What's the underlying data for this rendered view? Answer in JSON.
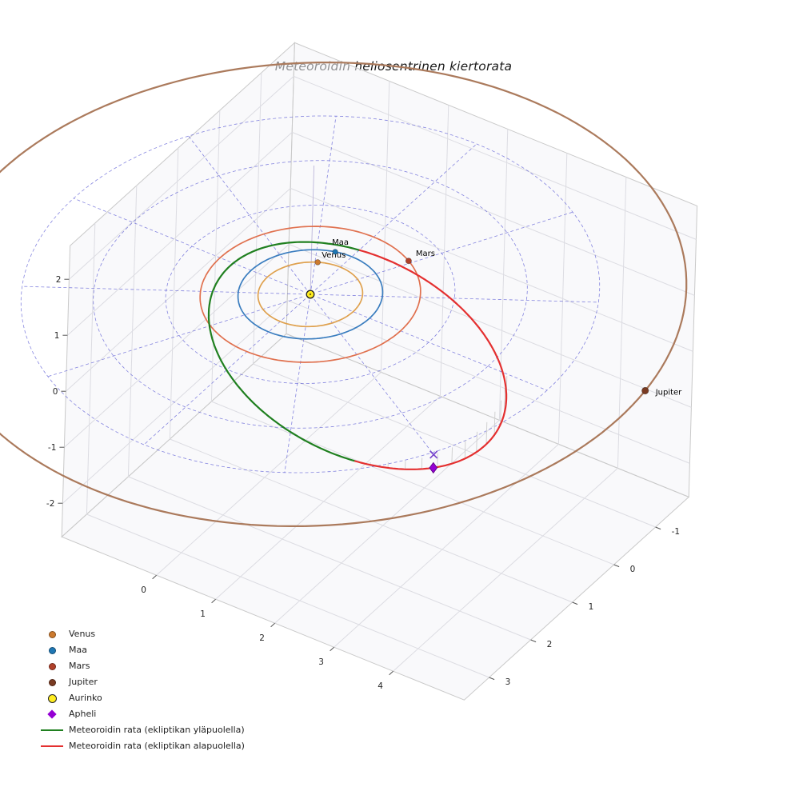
{
  "title": "Meteoroidin heliosentrinen kiertorata",
  "legend": {
    "items": [
      {
        "label": "Venus",
        "swatch": "dot",
        "color": "#cc7a2e"
      },
      {
        "label": "Maa",
        "swatch": "dot",
        "color": "#1f77b4"
      },
      {
        "label": "Mars",
        "swatch": "dot",
        "color": "#b0402a"
      },
      {
        "label": "Jupiter",
        "swatch": "dot",
        "color": "#7a3b22"
      },
      {
        "label": "Aurinko",
        "swatch": "ring",
        "color": "#ffed21"
      },
      {
        "label": "Apheli",
        "swatch": "diamond",
        "color": "#9400d3"
      },
      {
        "label": "Meteoroidin rata (ekliptikan yläpuolella)",
        "swatch": "line",
        "color": "#208020"
      },
      {
        "label": "Meteoroidin rata (ekliptikan alapuolella)",
        "swatch": "line",
        "color": "#e43030"
      }
    ]
  },
  "chart_data": {
    "type": "line",
    "subtype": "3d-heliocentric-orbit-plot",
    "title": "Meteoroidin heliosentrinen kiertorata",
    "units": "AU",
    "axis_ticks": {
      "x": [
        0,
        1,
        2,
        3,
        4
      ],
      "y": [
        -1,
        0,
        1,
        2,
        3
      ],
      "z": [
        -2,
        -1,
        0,
        1,
        2
      ]
    },
    "axis_ranges": {
      "x": [
        -1.6,
        5.2
      ],
      "y": [
        -1.8,
        3.6
      ],
      "z": [
        -2.6,
        2.6
      ]
    },
    "grid": "on",
    "legend_position": "lower-left",
    "ecliptic_grid": {
      "circle_radii_au": [
        1,
        2,
        3,
        4
      ],
      "spoke_count": 12,
      "spoke_radius_au": 4,
      "style": "dashed",
      "color": "#4545d0"
    },
    "planet_orbits": [
      {
        "name": "Venus",
        "radius_au": 0.723,
        "color": "#dfa14e",
        "marker_color": "#cc7a2e",
        "marker_longitude_deg": 243,
        "label": "Venus"
      },
      {
        "name": "Maa",
        "radius_au": 1.0,
        "color": "#3a7dbf",
        "marker_color": "#1f77b4",
        "marker_longitude_deg": 255,
        "label": "Maa"
      },
      {
        "name": "Mars",
        "radius_au": 1.524,
        "color": "#e0714f",
        "marker_color": "#b0402a",
        "marker_longitude_deg": 298,
        "label": "Mars"
      },
      {
        "name": "Jupiter",
        "radius_au": 5.2,
        "color": "#ab7a5c",
        "marker_color": "#7a3b22",
        "marker_longitude_deg": -8,
        "label": "Jupiter"
      }
    ],
    "sun": {
      "label": "Aurinko",
      "color": "#ffed21",
      "edge_color": "#222222"
    },
    "meteoroid_orbit": {
      "semi_major_axis_au": 2.5,
      "eccentricity": 0.62,
      "perihelion_au": 0.95,
      "aphelion_au": 4.05,
      "perihelion_longitude_deg": 210,
      "z_amplitude_au": 0.45,
      "z_phase_rad": 0.55,
      "above_color": "#208020",
      "below_color": "#e43030",
      "above_label": "Meteoroidin rata (ekliptikan yläpuolella)",
      "below_label": "Meteoroidin rata (ekliptikan alapuolella)"
    },
    "aphelion_marker": {
      "label": "Apheli",
      "shape": "diamond",
      "color": "#9400d3"
    },
    "aphelion_projection_marker": {
      "shape": "x",
      "color": "#7744cc"
    },
    "stems": {
      "color": "#cdcdcd",
      "region": "below-ecliptic-near-aphelion"
    }
  }
}
